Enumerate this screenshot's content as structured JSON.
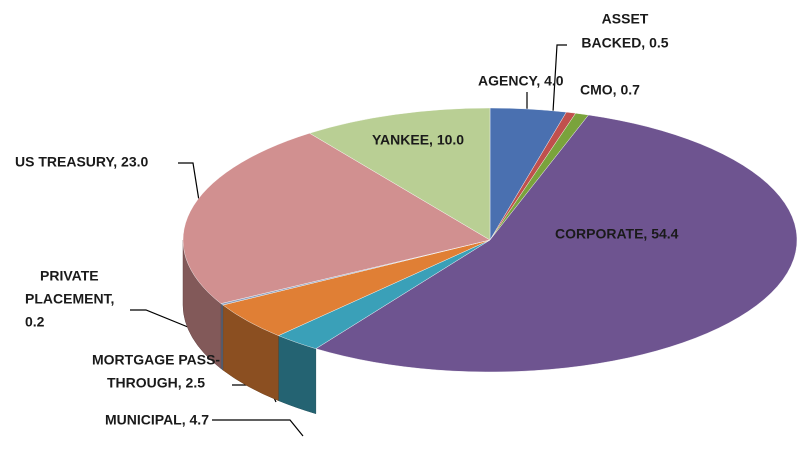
{
  "chart_data": {
    "type": "pie3d",
    "values": [
      4.0,
      0.5,
      0.7,
      54.4,
      2.5,
      4.7,
      0.2,
      23.0,
      10.0
    ],
    "value_labels": [
      [
        "AGENCY, 4.0"
      ],
      [
        "ASSET",
        "BACKED, 0.5"
      ],
      [
        "CMO, 0.7"
      ],
      [
        "CORPORATE, 54.4"
      ],
      [
        "MORTGAGE PASS-",
        "THROUGH, 2.5"
      ],
      [
        "MUNICIPAL, 4.7"
      ],
      [
        "PRIVATE",
        "PLACEMENT,",
        "0.2"
      ],
      [
        "US TREASURY, 23.0"
      ],
      [
        "YANKEE, 10.0"
      ]
    ],
    "colors": [
      "#4a70b0",
      "#c0504d",
      "#7aa33c",
      "#6e5490",
      "#3aa0b8",
      "#e07f35",
      "#8ca0c0",
      "#d19090",
      "#b9cf94"
    ]
  }
}
